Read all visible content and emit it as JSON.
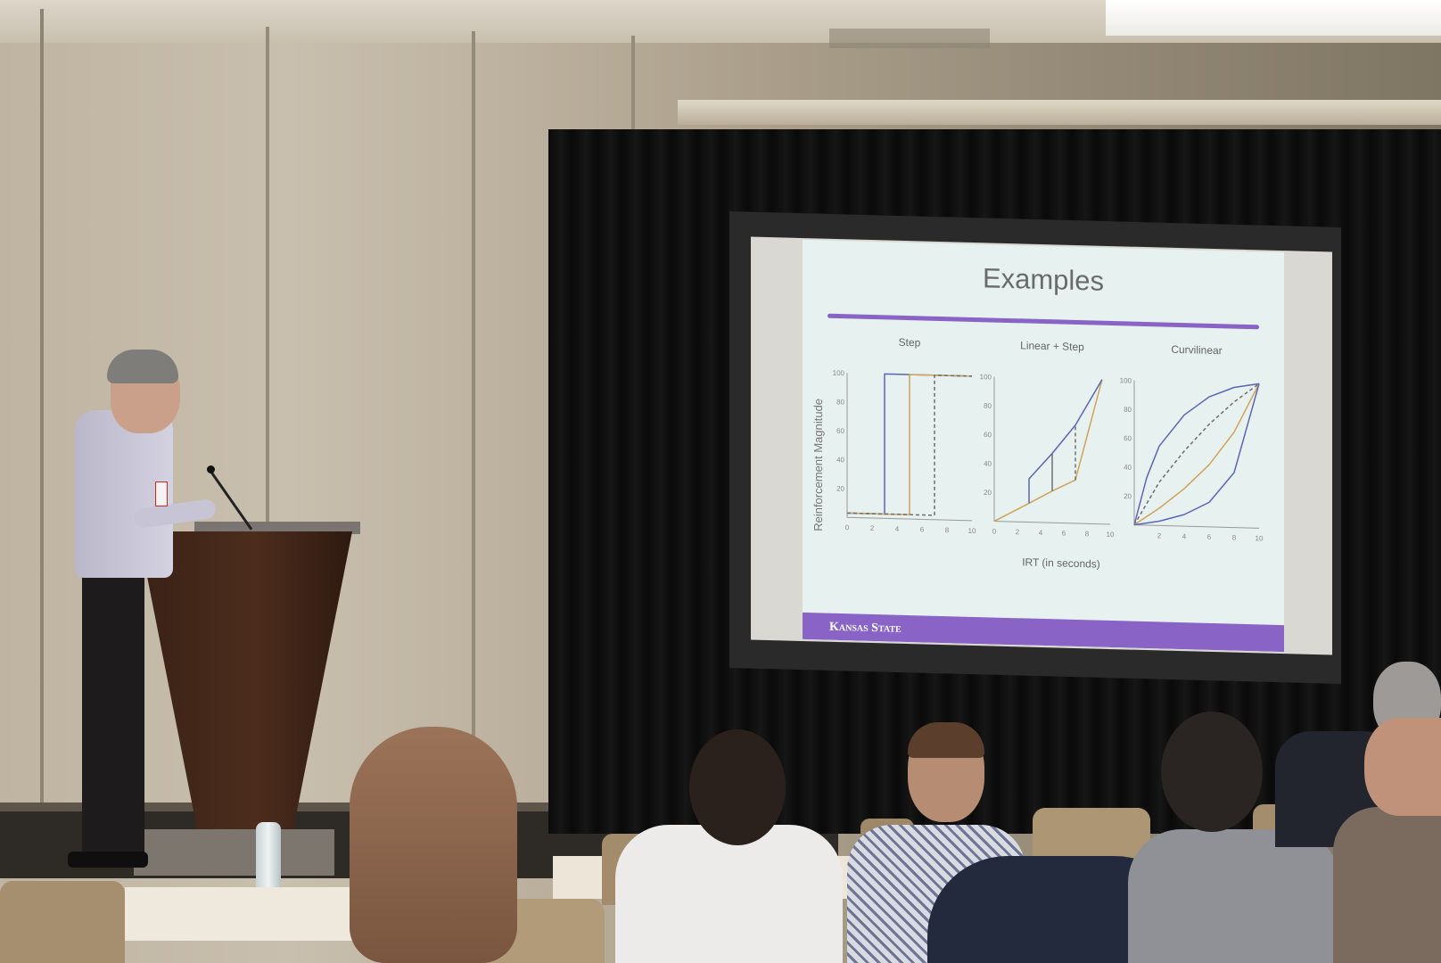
{
  "scene": {
    "description": "Conference room presentation: speaker at a wooden podium, projection screen showing a slide, audience seated in foreground"
  },
  "slide": {
    "title": "Examples",
    "footer_brand": "Kansas State",
    "xlabel": "IRT (in seconds)",
    "ylabel": "Reinforcement Magnitude",
    "accent_color": "#8a63c7",
    "background_color": "#e6f1f0"
  },
  "chart_data": [
    {
      "type": "line",
      "title": "Step",
      "xlim": [
        0,
        10
      ],
      "ylim": [
        0,
        100
      ],
      "x_ticks": [
        "0",
        "2",
        "4",
        "6",
        "8",
        "10"
      ],
      "y_ticks": [
        "20",
        "40",
        "60",
        "80",
        "100"
      ],
      "series": [
        {
          "color": "#5b66b8",
          "style": "solid",
          "points": [
            [
              0,
              3
            ],
            [
              3,
              3
            ],
            [
              3,
              100
            ],
            [
              10,
              100
            ]
          ]
        },
        {
          "color": "#d1a35a",
          "style": "solid",
          "points": [
            [
              0,
              3
            ],
            [
              5,
              3
            ],
            [
              5,
              100
            ],
            [
              10,
              100
            ]
          ]
        },
        {
          "color": "#6f6f6f",
          "style": "dashed",
          "points": [
            [
              0,
              3
            ],
            [
              7,
              3
            ],
            [
              7,
              100
            ],
            [
              10,
              100
            ]
          ]
        }
      ]
    },
    {
      "type": "line",
      "title": "Linear + Step",
      "xlim": [
        0,
        10
      ],
      "ylim": [
        0,
        100
      ],
      "x_ticks": [
        "0",
        "2",
        "4",
        "6",
        "8",
        "10"
      ],
      "y_ticks": [
        "20",
        "40",
        "60",
        "80",
        "100"
      ],
      "series": [
        {
          "color": "#d1a35a",
          "style": "solid",
          "points": [
            [
              0,
              0
            ],
            [
              3,
              13
            ],
            [
              5,
              22
            ],
            [
              7,
              30
            ],
            [
              9.3,
              100
            ]
          ]
        },
        {
          "color": "#5b66b8",
          "style": "solid",
          "points": [
            [
              3,
              13
            ],
            [
              3,
              30
            ],
            [
              5,
              48
            ],
            [
              7,
              68
            ],
            [
              9.3,
              100
            ]
          ]
        },
        {
          "color": "#6f6f6f",
          "style": "solid",
          "points": [
            [
              5,
              22
            ],
            [
              5,
              48
            ]
          ]
        },
        {
          "color": "#6f6f6f",
          "style": "dashed",
          "points": [
            [
              7,
              30
            ],
            [
              7,
              68
            ]
          ]
        }
      ]
    },
    {
      "type": "line",
      "title": "Curvilinear",
      "xlim": [
        0,
        10
      ],
      "ylim": [
        0,
        100
      ],
      "x_ticks": [
        "2",
        "4",
        "6",
        "8",
        "10"
      ],
      "y_ticks": [
        "20",
        "40",
        "60",
        "80",
        "100"
      ],
      "series": [
        {
          "color": "#5b66b8",
          "style": "solid",
          "points": [
            [
              0,
              0
            ],
            [
              1,
              33
            ],
            [
              2,
              55
            ],
            [
              4,
              77
            ],
            [
              6,
              90
            ],
            [
              8,
              97
            ],
            [
              10,
              100
            ]
          ]
        },
        {
          "color": "#6f6f6f",
          "style": "dashed",
          "points": [
            [
              0,
              0
            ],
            [
              2,
              30
            ],
            [
              4,
              52
            ],
            [
              6,
              71
            ],
            [
              8,
              87
            ],
            [
              10,
              100
            ]
          ]
        },
        {
          "color": "#d1a35a",
          "style": "solid",
          "points": [
            [
              0,
              0
            ],
            [
              2,
              12
            ],
            [
              4,
              26
            ],
            [
              6,
              43
            ],
            [
              8,
              66
            ],
            [
              10,
              100
            ]
          ]
        },
        {
          "color": "#5b66b8",
          "style": "solid",
          "points": [
            [
              0,
              0
            ],
            [
              2,
              3
            ],
            [
              4,
              8
            ],
            [
              6,
              17
            ],
            [
              8,
              38
            ],
            [
              10,
              100
            ]
          ]
        }
      ]
    }
  ]
}
